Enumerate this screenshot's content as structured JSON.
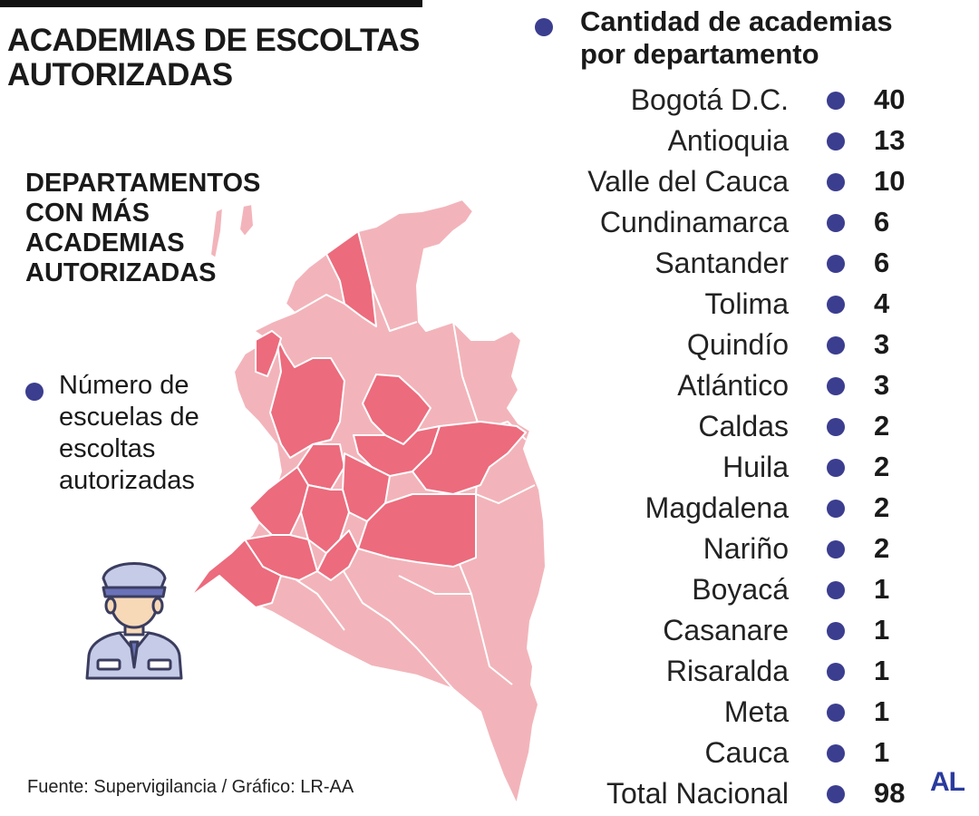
{
  "header": {
    "title": "ACADEMIAS DE ESCOLTAS AUTORIZADAS"
  },
  "map_section": {
    "subtitle": "DEPARTAMENTOS CON MÁS ACADEMIAS AUTORIZADAS"
  },
  "legend": {
    "text": "Número de escuelas de escoltas autorizadas",
    "dot_color": "#3b3d8f"
  },
  "list": {
    "title": "Cantidad de academias por departamento",
    "rows": [
      {
        "name": "Bogotá D.C.",
        "value": "40"
      },
      {
        "name": "Antioquia",
        "value": "13"
      },
      {
        "name": "Valle del Cauca",
        "value": "10"
      },
      {
        "name": "Cundinamarca",
        "value": "6"
      },
      {
        "name": "Santander",
        "value": "6"
      },
      {
        "name": "Tolima",
        "value": "4"
      },
      {
        "name": "Quindío",
        "value": "3"
      },
      {
        "name": "Atlántico",
        "value": "3"
      },
      {
        "name": "Caldas",
        "value": "2"
      },
      {
        "name": "Huila",
        "value": "2"
      },
      {
        "name": "Magdalena",
        "value": "2"
      },
      {
        "name": "Nariño",
        "value": "2"
      },
      {
        "name": "Boyacá",
        "value": "1"
      },
      {
        "name": "Casanare",
        "value": "1"
      },
      {
        "name": "Risaralda",
        "value": "1"
      },
      {
        "name": "Meta",
        "value": "1"
      },
      {
        "name": "Cauca",
        "value": "1"
      },
      {
        "name": "Total Nacional",
        "value": "98"
      }
    ]
  },
  "footer": {
    "source": "Fuente: Supervigilancia / Gráfico: LR-AA",
    "logo_text": "AL"
  },
  "colors": {
    "highlight": "#ec6b7d",
    "base": "#f2b4ba",
    "border": "#ffffff",
    "accent": "#3b3d8f"
  },
  "icons": {
    "guard": "security-guard-icon"
  }
}
